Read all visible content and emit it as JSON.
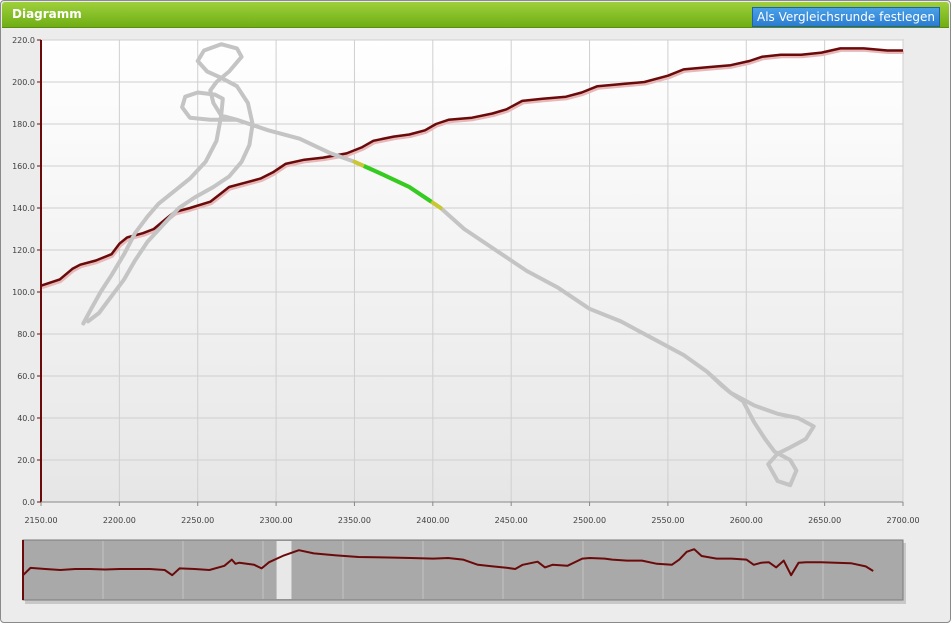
{
  "panel": {
    "title": "Diagramm",
    "compare_button": "Als Vergleichsrunde festlegen"
  },
  "colors": {
    "header_green": "#7dbb22",
    "button_blue": "#2b7cd0",
    "speed_line": "#6b0a0a",
    "track": "#c4c4c4",
    "track_highlight_green": "#33cc22",
    "track_highlight_yellow": "#c8c830",
    "navigator_bg": "#a9a9a9",
    "navigator_window": "#e8e8e8"
  },
  "chart_data": {
    "type": "line",
    "grid": true,
    "xlim": [
      2150,
      2700
    ],
    "ylim": [
      0,
      220
    ],
    "x_ticks": [
      "2150.00",
      "2200.00",
      "2250.00",
      "2300.00",
      "2350.00",
      "2400.00",
      "2450.00",
      "2500.00",
      "2550.00",
      "2600.00",
      "2650.00",
      "2700.00"
    ],
    "y_ticks": [
      "0.0",
      "20.0",
      "40.0",
      "60.0",
      "80.0",
      "100.0",
      "120.0",
      "140.0",
      "160.0",
      "180.0",
      "200.0",
      "220.0"
    ],
    "series": [
      {
        "role": "speed",
        "color": "#6b0a0a",
        "points": [
          [
            2150,
            103
          ],
          [
            2162,
            106
          ],
          [
            2170,
            111
          ],
          [
            2175,
            113
          ],
          [
            2185,
            115
          ],
          [
            2195,
            118
          ],
          [
            2200,
            123
          ],
          [
            2205,
            126
          ],
          [
            2215,
            128
          ],
          [
            2222,
            130
          ],
          [
            2230,
            135
          ],
          [
            2235,
            138
          ],
          [
            2245,
            140
          ],
          [
            2258,
            143
          ],
          [
            2265,
            147
          ],
          [
            2270,
            150
          ],
          [
            2280,
            152
          ],
          [
            2290,
            154
          ],
          [
            2298,
            157
          ],
          [
            2306,
            161
          ],
          [
            2318,
            163
          ],
          [
            2330,
            164
          ],
          [
            2345,
            166
          ],
          [
            2355,
            169
          ],
          [
            2362,
            172
          ],
          [
            2375,
            174
          ],
          [
            2385,
            175
          ],
          [
            2395,
            177
          ],
          [
            2402,
            180
          ],
          [
            2410,
            182
          ],
          [
            2425,
            183
          ],
          [
            2438,
            185
          ],
          [
            2447,
            187
          ],
          [
            2457,
            191
          ],
          [
            2470,
            192
          ],
          [
            2485,
            193
          ],
          [
            2495,
            195
          ],
          [
            2505,
            198
          ],
          [
            2520,
            199
          ],
          [
            2535,
            200
          ],
          [
            2550,
            203
          ],
          [
            2560,
            206
          ],
          [
            2575,
            207
          ],
          [
            2590,
            208
          ],
          [
            2602,
            210
          ],
          [
            2610,
            212
          ],
          [
            2622,
            213
          ],
          [
            2635,
            213
          ],
          [
            2648,
            214
          ],
          [
            2660,
            216
          ],
          [
            2675,
            216
          ],
          [
            2690,
            215
          ],
          [
            2700,
            215
          ]
        ]
      },
      {
        "role": "track",
        "color": "#c4c4c4",
        "points": [
          [
            2177,
            85
          ],
          [
            2182,
            92
          ],
          [
            2188,
            100
          ],
          [
            2195,
            108
          ],
          [
            2203,
            118
          ],
          [
            2210,
            128
          ],
          [
            2218,
            136
          ],
          [
            2225,
            142
          ],
          [
            2235,
            148
          ],
          [
            2245,
            154
          ],
          [
            2255,
            162
          ],
          [
            2262,
            172
          ],
          [
            2265,
            184
          ],
          [
            2266,
            192
          ],
          [
            2261,
            194
          ],
          [
            2250,
            195
          ],
          [
            2242,
            193
          ],
          [
            2240,
            188
          ],
          [
            2245,
            183
          ],
          [
            2258,
            182
          ],
          [
            2268,
            182
          ],
          [
            2275,
            182
          ],
          [
            2295,
            177
          ],
          [
            2315,
            173
          ],
          [
            2335,
            166
          ],
          [
            2350,
            162
          ],
          [
            2365,
            157
          ],
          [
            2385,
            150
          ],
          [
            2405,
            140
          ],
          [
            2420,
            130
          ],
          [
            2440,
            120
          ],
          [
            2460,
            110
          ],
          [
            2480,
            102
          ],
          [
            2500,
            92
          ],
          [
            2520,
            86
          ],
          [
            2540,
            78
          ],
          [
            2560,
            70
          ],
          [
            2575,
            62
          ],
          [
            2590,
            52
          ],
          [
            2605,
            46
          ],
          [
            2620,
            42
          ],
          [
            2633,
            40
          ],
          [
            2643,
            36
          ],
          [
            2638,
            30
          ],
          [
            2628,
            26
          ],
          [
            2620,
            23
          ],
          [
            2614,
            18
          ],
          [
            2620,
            10
          ],
          [
            2628,
            8
          ],
          [
            2632,
            15
          ],
          [
            2628,
            20
          ],
          [
            2618,
            24
          ],
          [
            2612,
            30
          ],
          [
            2605,
            38
          ],
          [
            2598,
            48
          ],
          [
            2590,
            52
          ],
          [
            2585,
            55
          ],
          [
            2575,
            62
          ],
          [
            2560,
            70
          ],
          [
            2540,
            78
          ],
          [
            2520,
            86
          ],
          [
            2500,
            92
          ],
          [
            2480,
            102
          ],
          [
            2460,
            110
          ],
          [
            2440,
            120
          ],
          [
            2420,
            130
          ],
          [
            2405,
            140
          ],
          [
            2385,
            150
          ],
          [
            2365,
            157
          ],
          [
            2350,
            162
          ],
          [
            2335,
            166
          ],
          [
            2315,
            173
          ],
          [
            2295,
            177
          ],
          [
            2275,
            182
          ],
          [
            2265,
            184
          ],
          [
            2260,
            190
          ],
          [
            2258,
            196
          ],
          [
            2262,
            200
          ],
          [
            2270,
            205
          ],
          [
            2278,
            212
          ],
          [
            2275,
            216
          ],
          [
            2265,
            218
          ],
          [
            2254,
            215
          ],
          [
            2250,
            210
          ],
          [
            2256,
            205
          ],
          [
            2265,
            202
          ],
          [
            2275,
            198
          ],
          [
            2282,
            190
          ],
          [
            2285,
            180
          ],
          [
            2283,
            170
          ],
          [
            2278,
            162
          ],
          [
            2270,
            155
          ],
          [
            2260,
            150
          ],
          [
            2248,
            145
          ],
          [
            2238,
            140
          ],
          [
            2228,
            132
          ],
          [
            2218,
            124
          ],
          [
            2210,
            115
          ],
          [
            2203,
            106
          ],
          [
            2195,
            98
          ],
          [
            2187,
            90
          ],
          [
            2180,
            86
          ]
        ]
      },
      {
        "role": "highlight",
        "color": "#33cc22",
        "points": [
          [
            2350,
            162
          ],
          [
            2365,
            157
          ],
          [
            2385,
            150
          ],
          [
            2405,
            140
          ]
        ]
      }
    ],
    "navigator": {
      "window_start": 2250,
      "window_end": 2270,
      "x_range": [
        1910,
        3090
      ],
      "points": [
        [
          1910,
          40
        ],
        [
          1920,
          54
        ],
        [
          1940,
          52
        ],
        [
          1960,
          50
        ],
        [
          1980,
          52
        ],
        [
          2000,
          52
        ],
        [
          2020,
          51
        ],
        [
          2040,
          52
        ],
        [
          2060,
          52
        ],
        [
          2080,
          52
        ],
        [
          2100,
          50
        ],
        [
          2110,
          40
        ],
        [
          2120,
          53
        ],
        [
          2140,
          52
        ],
        [
          2160,
          50
        ],
        [
          2180,
          58
        ],
        [
          2190,
          70
        ],
        [
          2195,
          62
        ],
        [
          2200,
          64
        ],
        [
          2220,
          60
        ],
        [
          2230,
          53
        ],
        [
          2240,
          65
        ],
        [
          2260,
          78
        ],
        [
          2280,
          88
        ],
        [
          2300,
          82
        ],
        [
          2330,
          78
        ],
        [
          2360,
          75
        ],
        [
          2400,
          74
        ],
        [
          2430,
          73
        ],
        [
          2460,
          72
        ],
        [
          2480,
          73
        ],
        [
          2500,
          70
        ],
        [
          2520,
          60
        ],
        [
          2540,
          57
        ],
        [
          2560,
          54
        ],
        [
          2570,
          52
        ],
        [
          2580,
          60
        ],
        [
          2600,
          66
        ],
        [
          2610,
          55
        ],
        [
          2620,
          60
        ],
        [
          2640,
          58
        ],
        [
          2660,
          72
        ],
        [
          2670,
          73
        ],
        [
          2690,
          72
        ],
        [
          2700,
          70
        ],
        [
          2720,
          68
        ],
        [
          2740,
          68
        ],
        [
          2760,
          62
        ],
        [
          2780,
          60
        ],
        [
          2790,
          70
        ],
        [
          2800,
          85
        ],
        [
          2810,
          90
        ],
        [
          2820,
          77
        ],
        [
          2840,
          72
        ],
        [
          2860,
          72
        ],
        [
          2880,
          70
        ],
        [
          2890,
          60
        ],
        [
          2900,
          64
        ],
        [
          2910,
          65
        ],
        [
          2920,
          55
        ],
        [
          2930,
          68
        ],
        [
          2940,
          40
        ],
        [
          2950,
          64
        ],
        [
          2960,
          65
        ],
        [
          2980,
          65
        ],
        [
          3000,
          64
        ],
        [
          3020,
          63
        ],
        [
          3040,
          57
        ],
        [
          3050,
          48
        ]
      ]
    }
  }
}
